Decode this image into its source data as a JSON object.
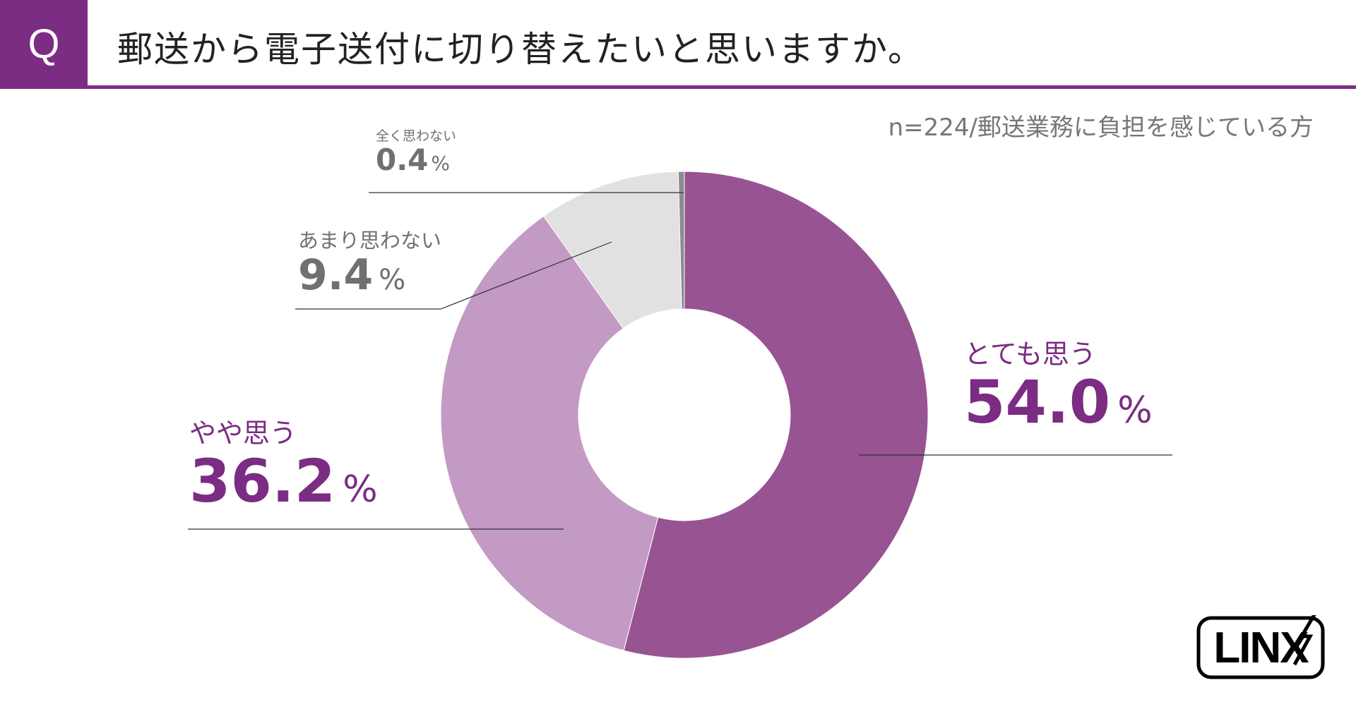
{
  "header": {
    "q_mark": "Q",
    "title": "郵送から電子送付に切り替えたいと思いますか。"
  },
  "sample_note": "n=224/郵送業務に負担を感じている方",
  "colors": {
    "accent": "#7b2c83",
    "slice_strong": "#985393",
    "slice_mid": "#c39ac4",
    "slice_light": "#e1e1e1",
    "slice_none": "#8c8c8c"
  },
  "chart_data": {
    "type": "pie",
    "style": "donut",
    "title": "郵送から電子送付に切り替えたいと思いますか。",
    "unit": "%",
    "slices": [
      {
        "label": "とても思う",
        "value": 54.0,
        "display": "54.0"
      },
      {
        "label": "やや思う",
        "value": 36.2,
        "display": "36.2"
      },
      {
        "label": "あまり思わない",
        "value": 9.4,
        "display": "9.4"
      },
      {
        "label": "全く思わない",
        "value": 0.4,
        "display": "0.4"
      }
    ]
  },
  "logo": {
    "text": "LINX"
  }
}
